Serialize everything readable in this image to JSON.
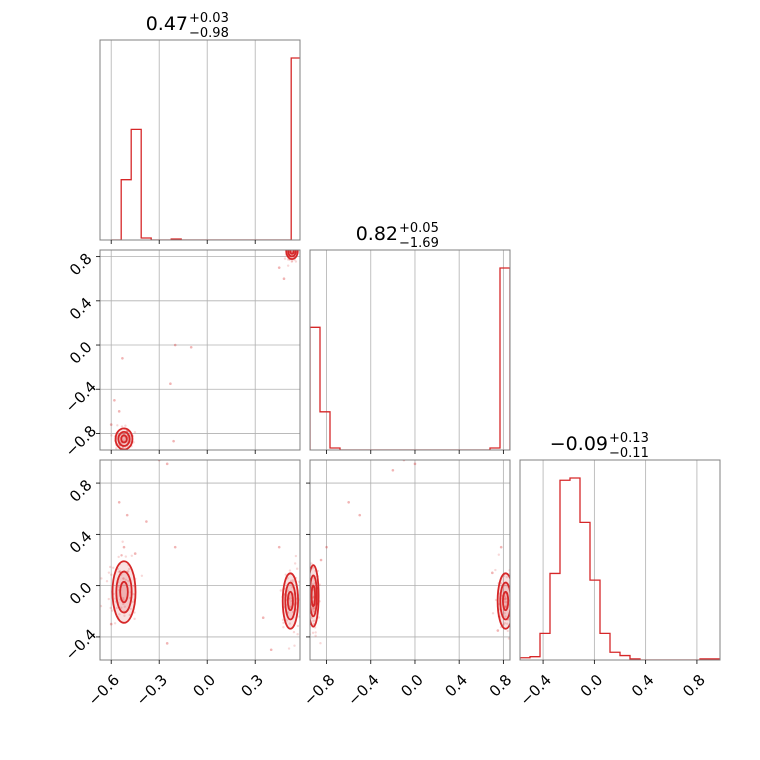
{
  "chart_data": {
    "type": "corner",
    "parameters": 3,
    "colors": {
      "series": "#d62728",
      "grid": "#b0b0b0",
      "frame": "#808080"
    },
    "titles": [
      {
        "value": "0.47",
        "plus": "+0.03",
        "minus": "−0.98"
      },
      {
        "value": "0.82",
        "plus": "+0.05",
        "minus": "−1.69"
      },
      {
        "value": "−0.09",
        "plus": "+0.13",
        "minus": "−0.11"
      }
    ],
    "ranges": [
      [
        -0.67,
        0.58
      ],
      [
        -0.95,
        0.86
      ],
      [
        -0.58,
        0.98
      ]
    ],
    "ticks": [
      {
        "values": [
          -0.6,
          -0.3,
          0.0,
          0.3
        ],
        "labels": [
          "−0.6",
          "−0.3",
          "0.0",
          "0.3"
        ]
      },
      {
        "values": [
          -0.8,
          -0.4,
          0.0,
          0.4,
          0.8
        ],
        "labels": [
          "−0.8",
          "−0.4",
          "0.0",
          "0.4",
          "0.8"
        ]
      },
      {
        "values": [
          -0.4,
          0.0,
          0.4,
          0.8
        ],
        "labels": [
          "−0.4",
          "0.0",
          "0.4",
          "0.8"
        ]
      }
    ],
    "histograms": [
      {
        "edges": [
          -0.6,
          -0.5375,
          -0.475,
          -0.4125,
          -0.35,
          -0.2875,
          -0.225,
          -0.1625,
          -0.1,
          -0.0375,
          0.025,
          0.0875,
          0.15,
          0.2125,
          0.275,
          0.3375,
          0.4,
          0.4625,
          0.525,
          0.5875,
          0.65
        ],
        "counts": [
          0.0,
          0.3,
          0.55,
          0.01,
          0.0,
          0.0,
          0.005,
          0.0,
          0.0,
          0.0,
          0.0,
          0.0,
          0.0,
          0.0,
          0.0,
          0.0,
          0.0,
          0.0,
          0.905,
          0.04
        ]
      },
      {
        "edges": [
          -0.95,
          -0.8595,
          -0.769,
          -0.6785,
          -0.588,
          -0.4975,
          -0.407,
          -0.3165,
          -0.226,
          -0.1355,
          -0.045,
          0.0455,
          0.136,
          0.2265,
          0.317,
          0.4075,
          0.498,
          0.5885,
          0.679,
          0.7695,
          0.86
        ],
        "counts": [
          0.61,
          0.19,
          0.01,
          0.0,
          0.0,
          0.0,
          0.0,
          0.0,
          0.0,
          0.0,
          0.0,
          0.0,
          0.0,
          0.0,
          0.0,
          0.0,
          0.0,
          0.0,
          0.01,
          0.905
        ]
      },
      {
        "edges": [
          -0.58,
          -0.502,
          -0.424,
          -0.346,
          -0.268,
          -0.19,
          -0.112,
          -0.034,
          0.044,
          0.122,
          0.2,
          0.278,
          0.356,
          0.434,
          0.512,
          0.59,
          0.668,
          0.746,
          0.824,
          0.902,
          0.98
        ],
        "counts": [
          0.01,
          0.015,
          0.12,
          0.39,
          0.81,
          0.82,
          0.62,
          0.36,
          0.12,
          0.035,
          0.02,
          0.005,
          0.0,
          0.0,
          0.0,
          0.0,
          0.0,
          0.0,
          0.005,
          0.005
        ]
      }
    ],
    "joint": [
      {
        "x_param": 0,
        "y_param": 1,
        "clusters": [
          {
            "x": 0.53,
            "y": 0.85,
            "sx": 0.015,
            "sy": 0.03
          },
          {
            "x": -0.52,
            "y": -0.85,
            "sx": 0.022,
            "sy": 0.04
          }
        ],
        "points": [
          [
            -0.53,
            -0.12
          ],
          [
            -0.2,
            0.0
          ],
          [
            -0.23,
            -0.35
          ],
          [
            -0.1,
            -0.02
          ],
          [
            -0.58,
            -0.5
          ],
          [
            -0.55,
            -0.6
          ],
          [
            -0.6,
            -0.72
          ],
          [
            -0.5,
            -0.78
          ],
          [
            0.45,
            0.7
          ],
          [
            0.48,
            0.6
          ],
          [
            -0.21,
            -0.87
          ]
        ]
      },
      {
        "x_param": 0,
        "y_param": 2,
        "clusters": [
          {
            "x": -0.52,
            "y": -0.05,
            "sx": 0.03,
            "sy": 0.1
          },
          {
            "x": 0.52,
            "y": -0.12,
            "sx": 0.02,
            "sy": 0.09
          }
        ],
        "points": [
          [
            -0.55,
            0.65
          ],
          [
            -0.5,
            0.55
          ],
          [
            -0.38,
            0.5
          ],
          [
            -0.3,
            0.98
          ],
          [
            -0.25,
            0.95
          ],
          [
            -0.52,
            0.3
          ],
          [
            -0.45,
            0.25
          ],
          [
            -0.2,
            0.3
          ],
          [
            0.4,
            -0.5
          ],
          [
            0.35,
            -0.25
          ],
          [
            0.45,
            0.3
          ],
          [
            -0.6,
            -0.3
          ],
          [
            -0.25,
            -0.45
          ]
        ]
      },
      {
        "x_param": 1,
        "y_param": 2,
        "clusters": [
          {
            "x": -0.92,
            "y": -0.08,
            "sx": 0.02,
            "sy": 0.1
          },
          {
            "x": 0.82,
            "y": -0.12,
            "sx": 0.03,
            "sy": 0.09
          }
        ],
        "points": [
          [
            -0.6,
            0.65
          ],
          [
            -0.5,
            0.55
          ],
          [
            -0.8,
            0.3
          ],
          [
            -0.2,
            0.9
          ],
          [
            -0.1,
            0.98
          ],
          [
            0.0,
            0.95
          ],
          [
            -0.85,
            0.2
          ],
          [
            0.75,
            -0.35
          ],
          [
            0.7,
            0.1
          ],
          [
            0.78,
            0.3
          ]
        ]
      }
    ]
  }
}
